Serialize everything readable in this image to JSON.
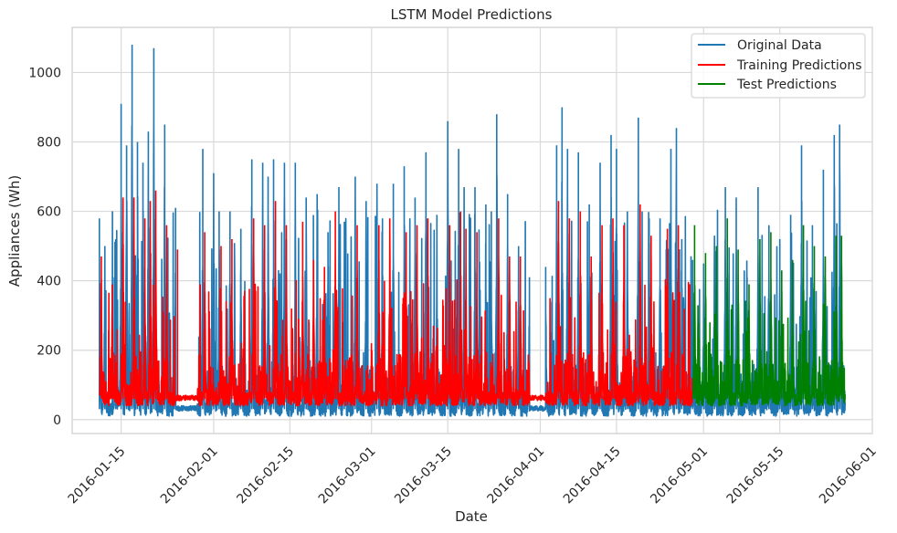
{
  "chart_data": {
    "type": "line",
    "title": "LSTM Model Predictions",
    "xlabel": "Date",
    "ylabel": "Appliances (Wh)",
    "xlim": [
      "2016-01-06",
      "2016-06-01"
    ],
    "ylim": [
      -40,
      1130
    ],
    "x_ticks": [
      "2016-01-15",
      "2016-02-01",
      "2016-02-15",
      "2016-03-01",
      "2016-03-15",
      "2016-04-01",
      "2016-04-15",
      "2016-05-01",
      "2016-05-15",
      "2016-06-01"
    ],
    "y_ticks": [
      0,
      200,
      400,
      600,
      800,
      1000
    ],
    "grid": true,
    "legend_position": "top-right",
    "series": [
      {
        "name": "Original Data",
        "color": "#1f77b4",
        "x_start": "2016-01-11",
        "x_end": "2016-05-27",
        "approx_range": [
          10,
          1080
        ],
        "peaks": [
          [
            "2016-01-11",
            580
          ],
          [
            "2016-01-12",
            500
          ],
          [
            "2016-01-14",
            520
          ],
          [
            "2016-01-15",
            910
          ],
          [
            "2016-01-16",
            790
          ],
          [
            "2016-01-17",
            1080
          ],
          [
            "2016-01-18",
            800
          ],
          [
            "2016-01-19",
            740
          ],
          [
            "2016-01-20",
            830
          ],
          [
            "2016-01-21",
            1070
          ],
          [
            "2016-01-23",
            850
          ],
          [
            "2016-01-25",
            610
          ],
          [
            "2016-01-30",
            780
          ],
          [
            "2016-02-01",
            710
          ],
          [
            "2016-02-02",
            600
          ],
          [
            "2016-02-04",
            600
          ],
          [
            "2016-02-06",
            550
          ],
          [
            "2016-02-08",
            750
          ],
          [
            "2016-02-10",
            740
          ],
          [
            "2016-02-11",
            700
          ],
          [
            "2016-02-12",
            750
          ],
          [
            "2016-02-14",
            740
          ],
          [
            "2016-02-16",
            740
          ],
          [
            "2016-02-18",
            640
          ],
          [
            "2016-02-20",
            650
          ],
          [
            "2016-02-22",
            540
          ],
          [
            "2016-02-24",
            670
          ],
          [
            "2016-02-25",
            570
          ],
          [
            "2016-02-27",
            700
          ],
          [
            "2016-02-29",
            630
          ],
          [
            "2016-03-02",
            680
          ],
          [
            "2016-03-03",
            580
          ],
          [
            "2016-03-05",
            680
          ],
          [
            "2016-03-07",
            730
          ],
          [
            "2016-03-09",
            640
          ],
          [
            "2016-03-11",
            770
          ],
          [
            "2016-03-13",
            590
          ],
          [
            "2016-03-15",
            860
          ],
          [
            "2016-03-17",
            780
          ],
          [
            "2016-03-18",
            670
          ],
          [
            "2016-03-20",
            670
          ],
          [
            "2016-03-22",
            620
          ],
          [
            "2016-03-23",
            600
          ],
          [
            "2016-03-24",
            880
          ],
          [
            "2016-03-26",
            650
          ],
          [
            "2016-03-28",
            500
          ],
          [
            "2016-03-30",
            410
          ],
          [
            "2016-04-02",
            440
          ],
          [
            "2016-04-04",
            790
          ],
          [
            "2016-04-05",
            900
          ],
          [
            "2016-04-06",
            780
          ],
          [
            "2016-04-08",
            770
          ],
          [
            "2016-04-10",
            620
          ],
          [
            "2016-04-12",
            740
          ],
          [
            "2016-04-14",
            820
          ],
          [
            "2016-04-15",
            780
          ],
          [
            "2016-04-17",
            600
          ],
          [
            "2016-04-19",
            870
          ],
          [
            "2016-04-21",
            580
          ],
          [
            "2016-04-23",
            580
          ],
          [
            "2016-04-25",
            780
          ],
          [
            "2016-04-26",
            840
          ],
          [
            "2016-04-27",
            520
          ],
          [
            "2016-04-29",
            460
          ],
          [
            "2016-05-01",
            450
          ],
          [
            "2016-05-03",
            530
          ],
          [
            "2016-05-05",
            670
          ],
          [
            "2016-05-07",
            640
          ],
          [
            "2016-05-09",
            410
          ],
          [
            "2016-05-11",
            670
          ],
          [
            "2016-05-13",
            560
          ],
          [
            "2016-05-15",
            520
          ],
          [
            "2016-05-17",
            590
          ],
          [
            "2016-05-19",
            790
          ],
          [
            "2016-05-21",
            560
          ],
          [
            "2016-05-23",
            720
          ],
          [
            "2016-05-25",
            820
          ],
          [
            "2016-05-26",
            850
          ]
        ]
      },
      {
        "name": "Training Predictions",
        "color": "#ff0000",
        "x_start": "2016-01-11",
        "x_end": "2016-04-29",
        "approx_range": [
          40,
          660
        ],
        "peaks": [
          [
            "2016-01-11",
            470
          ],
          [
            "2016-01-13",
            390
          ],
          [
            "2016-01-15",
            640
          ],
          [
            "2016-01-17",
            640
          ],
          [
            "2016-01-19",
            580
          ],
          [
            "2016-01-20",
            630
          ],
          [
            "2016-01-21",
            660
          ],
          [
            "2016-01-23",
            560
          ],
          [
            "2016-01-25",
            490
          ],
          [
            "2016-01-30",
            540
          ],
          [
            "2016-02-02",
            500
          ],
          [
            "2016-02-04",
            520
          ],
          [
            "2016-02-08",
            580
          ],
          [
            "2016-02-10",
            560
          ],
          [
            "2016-02-12",
            630
          ],
          [
            "2016-02-14",
            560
          ],
          [
            "2016-02-17",
            570
          ],
          [
            "2016-02-19",
            460
          ],
          [
            "2016-02-21",
            440
          ],
          [
            "2016-02-23",
            600
          ],
          [
            "2016-02-27",
            560
          ],
          [
            "2016-03-02",
            560
          ],
          [
            "2016-03-04",
            580
          ],
          [
            "2016-03-07",
            540
          ],
          [
            "2016-03-09",
            560
          ],
          [
            "2016-03-11",
            580
          ],
          [
            "2016-03-15",
            560
          ],
          [
            "2016-03-17",
            600
          ],
          [
            "2016-03-18",
            550
          ],
          [
            "2016-03-20",
            540
          ],
          [
            "2016-03-24",
            580
          ],
          [
            "2016-03-26",
            470
          ],
          [
            "2016-03-28",
            470
          ],
          [
            "2016-04-04",
            630
          ],
          [
            "2016-04-06",
            580
          ],
          [
            "2016-04-08",
            600
          ],
          [
            "2016-04-10",
            470
          ],
          [
            "2016-04-12",
            560
          ],
          [
            "2016-04-14",
            580
          ],
          [
            "2016-04-16",
            560
          ],
          [
            "2016-04-19",
            620
          ],
          [
            "2016-04-21",
            530
          ],
          [
            "2016-04-24",
            550
          ],
          [
            "2016-04-26",
            560
          ]
        ]
      },
      {
        "name": "Test Predictions",
        "color": "#008000",
        "x_start": "2016-04-29",
        "x_end": "2016-05-27",
        "approx_range": [
          40,
          580
        ],
        "peaks": [
          [
            "2016-04-29",
            560
          ],
          [
            "2016-05-01",
            480
          ],
          [
            "2016-05-03",
            500
          ],
          [
            "2016-05-05",
            580
          ],
          [
            "2016-05-07",
            490
          ],
          [
            "2016-05-09",
            390
          ],
          [
            "2016-05-11",
            520
          ],
          [
            "2016-05-13",
            540
          ],
          [
            "2016-05-15",
            430
          ],
          [
            "2016-05-17",
            460
          ],
          [
            "2016-05-19",
            560
          ],
          [
            "2016-05-21",
            500
          ],
          [
            "2016-05-23",
            470
          ],
          [
            "2016-05-25",
            530
          ],
          [
            "2016-05-26",
            530
          ]
        ]
      }
    ]
  }
}
